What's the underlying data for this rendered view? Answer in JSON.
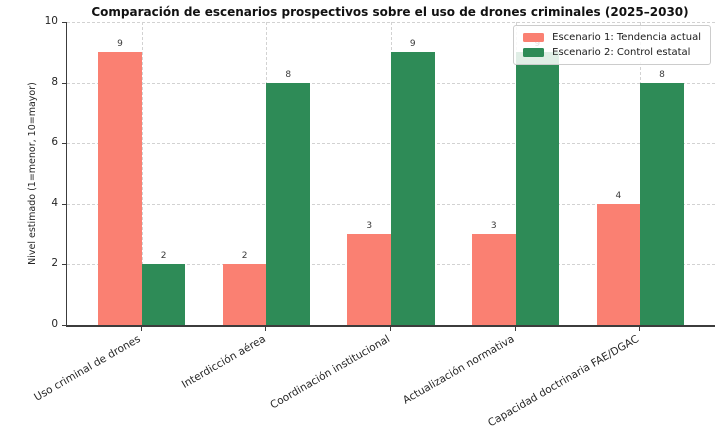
{
  "chart_data": {
    "type": "bar",
    "title": "Comparación de escenarios prospectivos sobre el uso de drones criminales (2025–2030)",
    "ylabel": "Nivel estimado (1=menor, 10=mayor)",
    "xlabel": "",
    "categories": [
      "Uso criminal de drones",
      "Interdicción aérea",
      "Coordinación institucional",
      "Actualización normativa",
      "Capacidad doctrinaria FAE/DGAC"
    ],
    "series": [
      {
        "name": "Escenario 1: Tendencia actual",
        "color": "#fa8072",
        "values": [
          9,
          2,
          3,
          3,
          4
        ]
      },
      {
        "name": "Escenario 2: Control estatal",
        "color": "#2e8b57",
        "values": [
          2,
          8,
          9,
          9,
          8
        ]
      }
    ],
    "ylim": [
      0,
      10
    ],
    "yticks": [
      0,
      2,
      4,
      6,
      8,
      10
    ],
    "grid": "dashed both axes",
    "legend_position": "upper right",
    "bar_value_labels": true,
    "x_tick_rotation_deg": 30
  }
}
